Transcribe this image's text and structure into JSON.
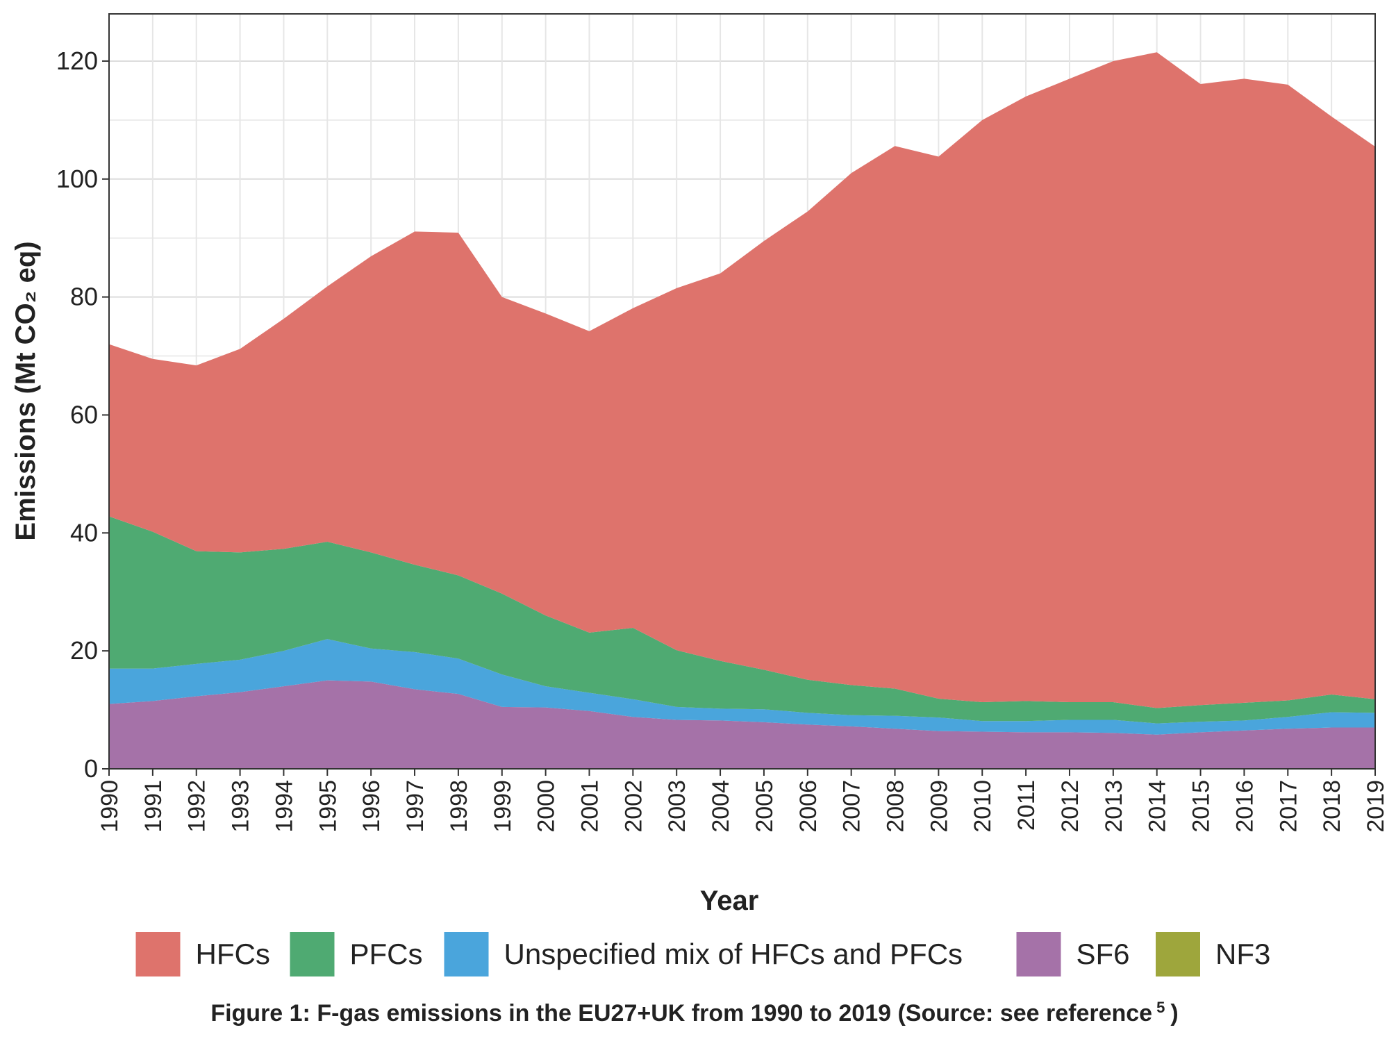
{
  "chart_data": {
    "type": "area",
    "stacked": true,
    "xlabel": "Year",
    "ylabel": "Emissions (Mt CO₂ eq)",
    "ylim": [
      0,
      128
    ],
    "yticks": [
      0,
      20,
      40,
      60,
      80,
      100,
      120
    ],
    "grid": true,
    "legend_position": "bottom",
    "x": [
      1990,
      1991,
      1992,
      1993,
      1994,
      1995,
      1996,
      1997,
      1998,
      1999,
      2000,
      2001,
      2002,
      2003,
      2004,
      2005,
      2006,
      2007,
      2008,
      2009,
      2010,
      2011,
      2012,
      2013,
      2014,
      2015,
      2016,
      2017,
      2018,
      2019
    ],
    "series": [
      {
        "name": "SF6",
        "color": "#a572a8",
        "values": [
          11,
          11.5,
          12.3,
          13,
          14,
          15,
          14.8,
          13.5,
          12.7,
          10.5,
          10.4,
          9.8,
          8.8,
          8.3,
          8.2,
          7.9,
          7.5,
          7.2,
          6.8,
          6.4,
          6.3,
          6.2,
          6.2,
          6.1,
          5.8,
          6.2,
          6.5,
          6.8,
          7,
          7
        ]
      },
      {
        "name": "Unspecified mix of HFCs and PFCs",
        "color": "#4aa5dc",
        "values": [
          6,
          5.5,
          5.5,
          5.5,
          6,
          7,
          5.6,
          6.3,
          6,
          5.5,
          3.6,
          3.1,
          3,
          2.2,
          2,
          2.2,
          2,
          1.9,
          2.2,
          2.3,
          1.8,
          1.9,
          2.1,
          2.2,
          1.9,
          1.8,
          1.7,
          2,
          2.6,
          2.5
        ]
      },
      {
        "name": "PFCs",
        "color": "#4faa72",
        "values": [
          25.8,
          23.2,
          19.1,
          18.2,
          17.3,
          16.5,
          16.3,
          14.8,
          14.1,
          13.7,
          12,
          10.2,
          12.1,
          9.6,
          8.1,
          6.7,
          5.6,
          5.1,
          4.6,
          3.2,
          3.2,
          3.4,
          3,
          3,
          2.6,
          2.8,
          3,
          2.8,
          3,
          2.3
        ]
      },
      {
        "name": "NF3",
        "color": "#9ea63c",
        "values": [
          0,
          0,
          0,
          0,
          0,
          0,
          0,
          0,
          0,
          0,
          0,
          0,
          0,
          0,
          0,
          0,
          0,
          0,
          0,
          0,
          0,
          0,
          0,
          0,
          0,
          0,
          0,
          0,
          0,
          0
        ]
      },
      {
        "name": "HFCs",
        "color": "#de736c",
        "values": [
          29.2,
          29.3,
          31.5,
          34.5,
          39,
          43.3,
          50.2,
          56.5,
          58.1,
          50.3,
          51.2,
          51.1,
          54.2,
          61.4,
          65.7,
          72.7,
          79.4,
          86.8,
          92,
          91.9,
          98.7,
          102.5,
          105.7,
          108.7,
          111.2,
          105.3,
          105.8,
          104.4,
          98,
          93.7
        ]
      }
    ],
    "legend": [
      {
        "name": "HFCs",
        "color": "#de736c"
      },
      {
        "name": "PFCs",
        "color": "#4faa72"
      },
      {
        "name": "Unspecified mix of HFCs and PFCs",
        "color": "#4aa5dc"
      },
      {
        "name": "SF6",
        "color": "#a572a8"
      },
      {
        "name": "NF3",
        "color": "#9ea63c"
      }
    ],
    "caption": "Figure 1: F-gas emissions in the EU27+UK from 1990 to 2019 (Source: see reference",
    "caption_ref": "5",
    "caption_end": ")"
  }
}
